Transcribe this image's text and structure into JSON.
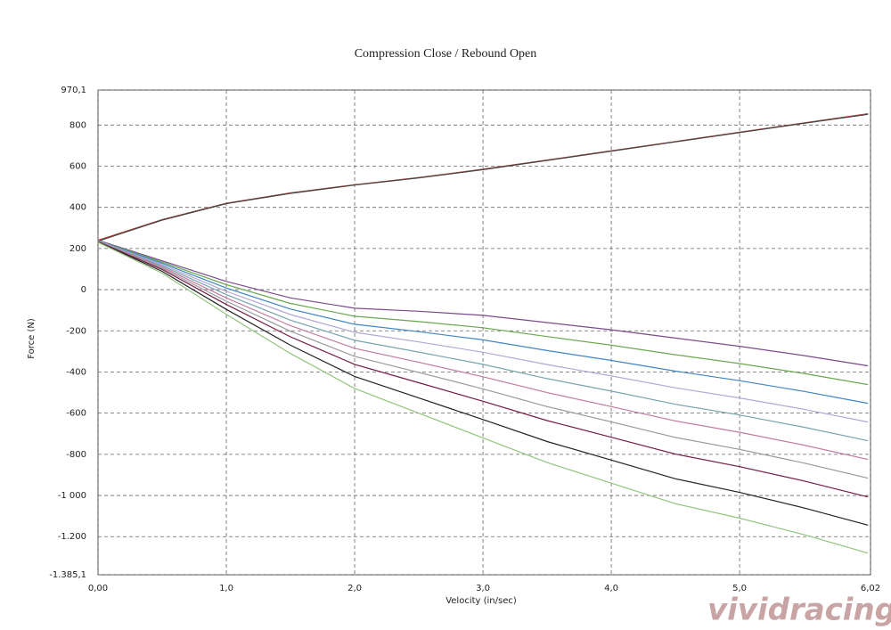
{
  "chart_data": {
    "type": "line",
    "title": "Compression Close / Rebound Open",
    "x_label": "Velocity (in/sec)",
    "y_label": "Force (N)",
    "watermark": "vividracing",
    "xlim": [
      0,
      6.02
    ],
    "ylim": [
      -1385.1,
      970.1
    ],
    "grid": true,
    "xticks": [
      {
        "value": 0,
        "label": "0,00"
      },
      {
        "value": 1,
        "label": "1,0"
      },
      {
        "value": 2,
        "label": "2,0"
      },
      {
        "value": 3,
        "label": "3,0"
      },
      {
        "value": 4,
        "label": "4,0"
      },
      {
        "value": 5,
        "label": "5,0"
      },
      {
        "value": 6.02,
        "label": "6,02"
      }
    ],
    "yticks": [
      {
        "value": 970.1,
        "label": "970,1"
      },
      800,
      600,
      400,
      200,
      0,
      -200,
      -400,
      -600,
      -800,
      {
        "value": -1000,
        "label": "-1 000"
      },
      {
        "value": -1200,
        "label": "-1.200"
      },
      {
        "value": -1385.1,
        "label": "-1.385,1"
      }
    ],
    "x": [
      0,
      0.5,
      1,
      1.5,
      2,
      2.5,
      3,
      3.5,
      4,
      4.5,
      5,
      5.5,
      6
    ],
    "series": [
      {
        "color": "#c0392b",
        "values": [
          240,
          340,
          420,
          470,
          510,
          545,
          585,
          630,
          675,
          720,
          765,
          810,
          855
        ]
      },
      {
        "color": "#444444",
        "values": [
          236,
          338,
          418,
          468,
          508,
          543,
          583,
          628,
          673,
          718,
          763,
          808,
          852
        ]
      },
      {
        "color": "#7a4a8a",
        "values": [
          240,
          140,
          40,
          -40,
          -90,
          -105,
          -125,
          -160,
          -195,
          -235,
          -275,
          -320,
          -370
        ]
      },
      {
        "color": "#6aa84f",
        "values": [
          239,
          134,
          24,
          -67,
          -129,
          -155,
          -185,
          -228,
          -270,
          -316,
          -359,
          -407,
          -461
        ]
      },
      {
        "color": "#3d85c6",
        "values": [
          238,
          128,
          8,
          -94,
          -168,
          -204,
          -244,
          -296,
          -344,
          -396,
          -442,
          -494,
          -552
        ]
      },
      {
        "color": "#b4a7d6",
        "values": [
          237,
          122,
          -8,
          -121,
          -207,
          -254,
          -304,
          -364,
          -419,
          -477,
          -526,
          -581,
          -643
        ]
      },
      {
        "color": "#76a5af",
        "values": [
          236,
          116,
          -24,
          -148,
          -246,
          -303,
          -363,
          -432,
          -493,
          -557,
          -609,
          -668,
          -734
        ]
      },
      {
        "color": "#c27ba0",
        "values": [
          235,
          110,
          -40,
          -175,
          -285,
          -353,
          -423,
          -500,
          -568,
          -638,
          -693,
          -755,
          -825
        ]
      },
      {
        "color": "#999999",
        "values": [
          234,
          104,
          -56,
          -202,
          -324,
          -402,
          -482,
          -568,
          -642,
          -718,
          -776,
          -842,
          -916
        ]
      },
      {
        "color": "#741b47",
        "values": [
          233,
          98,
          -72,
          -229,
          -363,
          -452,
          -542,
          -636,
          -717,
          -799,
          -860,
          -929,
          -1007
        ]
      },
      {
        "color": "#222222",
        "values": [
          232,
          89,
          -96,
          -270,
          -422,
          -526,
          -631,
          -738,
          -828,
          -919,
          -985,
          -1060,
          -1144
        ]
      },
      {
        "color": "#93c47d",
        "values": [
          230,
          80,
          -120,
          -310,
          -480,
          -600,
          -720,
          -840,
          -940,
          -1040,
          -1110,
          -1190,
          -1280
        ]
      }
    ]
  }
}
